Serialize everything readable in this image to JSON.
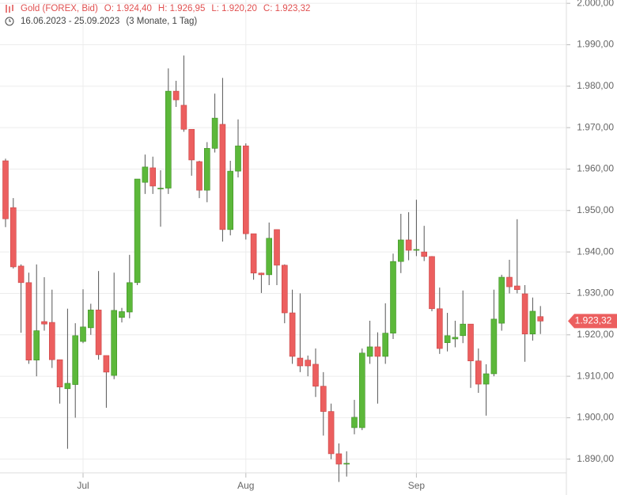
{
  "chart_data": {
    "type": "candlestick",
    "header_items": [
      "Gold (FOREX, Bid)",
      "O: 1.924,40",
      "H: 1.926,95",
      "L: 1.920,20",
      "C: 1.923,32"
    ],
    "date_range": "16.06.2023 - 25.09.2023",
    "period": "(3 Monate, 1 Tag)",
    "last_label": "1.923,32",
    "categories": [
      null,
      null,
      null,
      null,
      null,
      null,
      null,
      null,
      null,
      null,
      "Jul",
      null,
      null,
      null,
      null,
      null,
      null,
      null,
      null,
      null,
      null,
      null,
      null,
      null,
      null,
      null,
      null,
      null,
      null,
      null,
      null,
      "Aug",
      null,
      null,
      null,
      null,
      null,
      null,
      null,
      null,
      null,
      null,
      null,
      null,
      null,
      null,
      null,
      null,
      null,
      null,
      null,
      null,
      null,
      "Sep",
      null,
      null,
      null,
      null,
      null,
      null,
      null,
      null,
      null,
      null,
      null,
      null,
      null,
      null,
      null,
      null
    ],
    "open": [
      1962,
      1950.7,
      1936.6,
      1932.6,
      1913.9,
      1923.2,
      1923,
      1914,
      1907,
      1908,
      1918.4,
      1921.7,
      1926,
      1915,
      1910.2,
      1924.2,
      1925.5,
      1932.6,
      1956.8,
      1960.3,
      1955.2,
      1955.4,
      1978.8,
      1975.4,
      1969.6,
      1961.8,
      1954.9,
      1965,
      1970.8,
      1945.4,
      1959.5,
      1965.6,
      1944.4,
      1934.9,
      1934.5,
      1945.4,
      1936.8,
      1925.3,
      1914.4,
      1913.9,
      1912.9,
      1907.6,
      1901.5,
      1891.3,
      1888.8,
      1897.6,
      1897.6,
      1914.8,
      1917.1,
      1914.8,
      1920.4,
      1937.7,
      1942.9,
      1940.4,
      1940,
      1938.9,
      1926.3,
      1918.1,
      1919,
      1919.8,
      1922.6,
      1913.7,
      1908.1,
      1910.6,
      1922.8,
      1933.9,
      1931.8,
      1929.9,
      1920.2,
      1924.4
    ],
    "high": [
      1962.5,
      1953,
      1937,
      1935,
      1937,
      1933.9,
      1930.9,
      1914,
      1926.3,
      1922.8,
      1931,
      1927.5,
      1935.4,
      1915,
      1935,
      1926.5,
      1939.3,
      1957.6,
      1963.5,
      1963,
      1959.7,
      1984.3,
      1981.3,
      1987.4,
      1969.6,
      1962,
      1966.5,
      1978.2,
      1982,
      1962,
      1972,
      1966.2,
      1944.4,
      1935,
      1947.1,
      1945.4,
      1937,
      1930.9,
      1930,
      1915,
      1916.7,
      1911,
      1903.4,
      1893.8,
      1891.9,
      1904.3,
      1916.7,
      1923.4,
      1920.6,
      1927.6,
      1939.6,
      1949.2,
      1949.6,
      1952.6,
      1946.3,
      1939,
      1931.4,
      1925.3,
      1923.4,
      1930.7,
      1922.6,
      1916.7,
      1912.9,
      1930.9,
      1934.5,
      1938.1,
      1947.9,
      1932,
      1929,
      1926.95
    ],
    "low": [
      1946,
      1936,
      1920.5,
      1913,
      1910,
      1921,
      1912,
      1903.4,
      1892.5,
      1900,
      1918,
      1920,
      1914,
      1902.4,
      1909.3,
      1923,
      1924,
      1932,
      1954,
      1954,
      1946.1,
      1954,
      1975,
      1969,
      1958.4,
      1953,
      1952,
      1964,
      1942.5,
      1944,
      1958,
      1943,
      1933.3,
      1930.1,
      1932,
      1932,
      1922.8,
      1913,
      1911,
      1910,
      1905,
      1895.7,
      1890,
      1884.5,
      1885.8,
      1896,
      1897,
      1913,
      1903.4,
      1913,
      1919,
      1934.9,
      1938,
      1939,
      1937.8,
      1925.7,
      1915.4,
      1916,
      1917,
      1918,
      1907.2,
      1906,
      1900.5,
      1910,
      1921,
      1930,
      1930,
      1913.5,
      1918.6,
      1920.2
    ],
    "close": [
      1948,
      1936.4,
      1932.6,
      1913.9,
      1921,
      1922.6,
      1914,
      1907.4,
      1908.3,
      1919.8,
      1921.9,
      1926,
      1915.2,
      1911,
      1925.9,
      1925.6,
      1932.6,
      1957.6,
      1960.5,
      1955.9,
      1955.4,
      1978.8,
      1976.7,
      1969.6,
      1962.2,
      1954.9,
      1965,
      1972.3,
      1945.4,
      1959.5,
      1965.6,
      1944.4,
      1934.9,
      1934.5,
      1943.3,
      1936.8,
      1925.3,
      1914.8,
      1912.5,
      1912.5,
      1907.6,
      1901.5,
      1891.3,
      1888.8,
      1889,
      1900.1,
      1915.6,
      1917.1,
      1914.8,
      1920.4,
      1937.7,
      1942.9,
      1940.4,
      1940.6,
      1938.9,
      1926.3,
      1916.7,
      1919.8,
      1919.4,
      1922.6,
      1913.7,
      1908.1,
      1910.6,
      1923.8,
      1933.9,
      1931.6,
      1930.9,
      1920.2,
      1925.7,
      1923.32
    ],
    "up_color": "#5cb83a",
    "down_color": "#ec5f5f",
    "ylim": [
      1886.7,
      2000.8
    ],
    "yticks": [
      {
        "value": 1890,
        "label": "1.890,00"
      },
      {
        "value": 1900,
        "label": "1.900,00"
      },
      {
        "value": 1910,
        "label": "1.910,00"
      },
      {
        "value": 1920,
        "label": "1.920,00"
      },
      {
        "value": 1930,
        "label": "1.930,00"
      },
      {
        "value": 1940,
        "label": "1.940,00"
      },
      {
        "value": 1950,
        "label": "1.950,00"
      },
      {
        "value": 1960,
        "label": "1.960,00"
      },
      {
        "value": 1970,
        "label": "1.970,00"
      },
      {
        "value": 1980,
        "label": "1.980,00"
      },
      {
        "value": 1990,
        "label": "1.990,00"
      },
      {
        "value": 2000,
        "label": "2.000,00"
      }
    ],
    "grid": true
  }
}
